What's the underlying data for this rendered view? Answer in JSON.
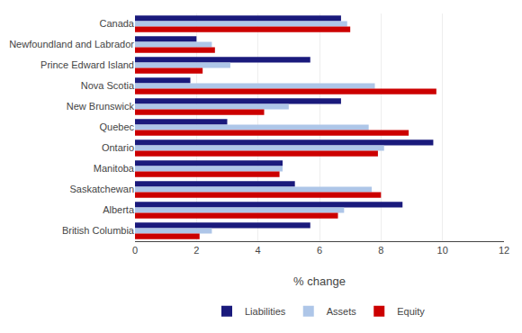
{
  "chart_data": {
    "type": "bar",
    "orientation": "horizontal",
    "categories": [
      "Canada",
      "Newfoundland and Labrador",
      "Prince Edward Island",
      "Nova Scotia",
      "New Brunswick",
      "Quebec",
      "Ontario",
      "Manitoba",
      "Saskatchewan",
      "Alberta",
      "British Columbia"
    ],
    "series": [
      {
        "name": "Liabilities",
        "color": "#1a1a7c",
        "values": [
          6.7,
          2.0,
          5.7,
          1.8,
          6.7,
          3.0,
          9.7,
          4.8,
          5.2,
          8.7,
          5.7
        ]
      },
      {
        "name": "Assets",
        "color": "#aec6e8",
        "values": [
          6.9,
          2.5,
          3.1,
          7.8,
          5.0,
          7.6,
          8.1,
          4.8,
          7.7,
          6.8,
          2.5
        ]
      },
      {
        "name": "Equity",
        "color": "#cc0000",
        "values": [
          7.0,
          2.6,
          2.2,
          9.8,
          4.2,
          8.9,
          7.9,
          4.7,
          8.0,
          6.6,
          2.1
        ]
      }
    ],
    "xlabel": "% change",
    "xlim": [
      0,
      12
    ],
    "xticks": [
      0,
      2,
      4,
      6,
      8,
      10,
      12
    ],
    "grid": true,
    "legend": "bottom"
  }
}
